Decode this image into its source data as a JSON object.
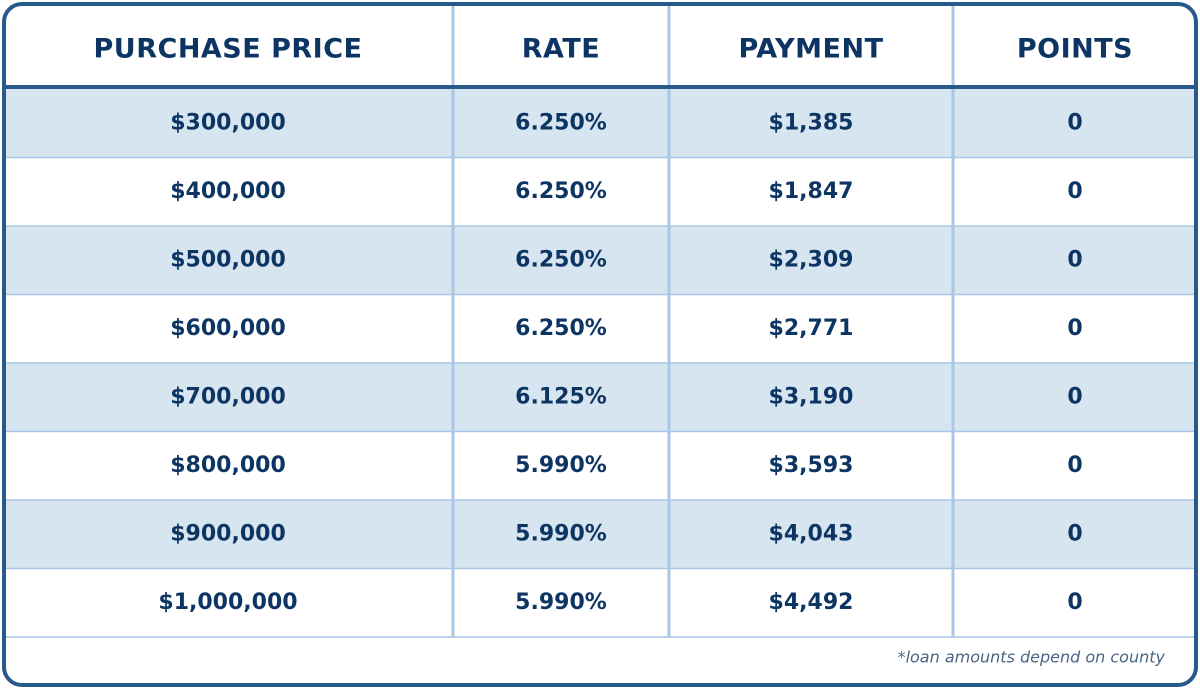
{
  "table": {
    "header": [
      "PURCHASE PRICE",
      "RATE",
      "PAYMENT",
      "POINTS"
    ],
    "rows": [
      [
        "$300,000",
        "6.250%",
        "$1,385",
        "0"
      ],
      [
        "$400,000",
        "6.250%",
        "$1,847",
        "0"
      ],
      [
        "$500,000",
        "6.250%",
        "$2,309",
        "0"
      ],
      [
        "$600,000",
        "6.250%",
        "$2,771",
        "0"
      ],
      [
        "$700,000",
        "6.125%",
        "$3,190",
        "0"
      ],
      [
        "$800,000",
        "5.990%",
        "$3,593",
        "0"
      ],
      [
        "$900,000",
        "5.990%",
        "$4,043",
        "0"
      ],
      [
        "$1,000,000",
        "5.990%",
        "$4,492",
        "0"
      ]
    ]
  },
  "footnote": "*loan amounts depend on county"
}
